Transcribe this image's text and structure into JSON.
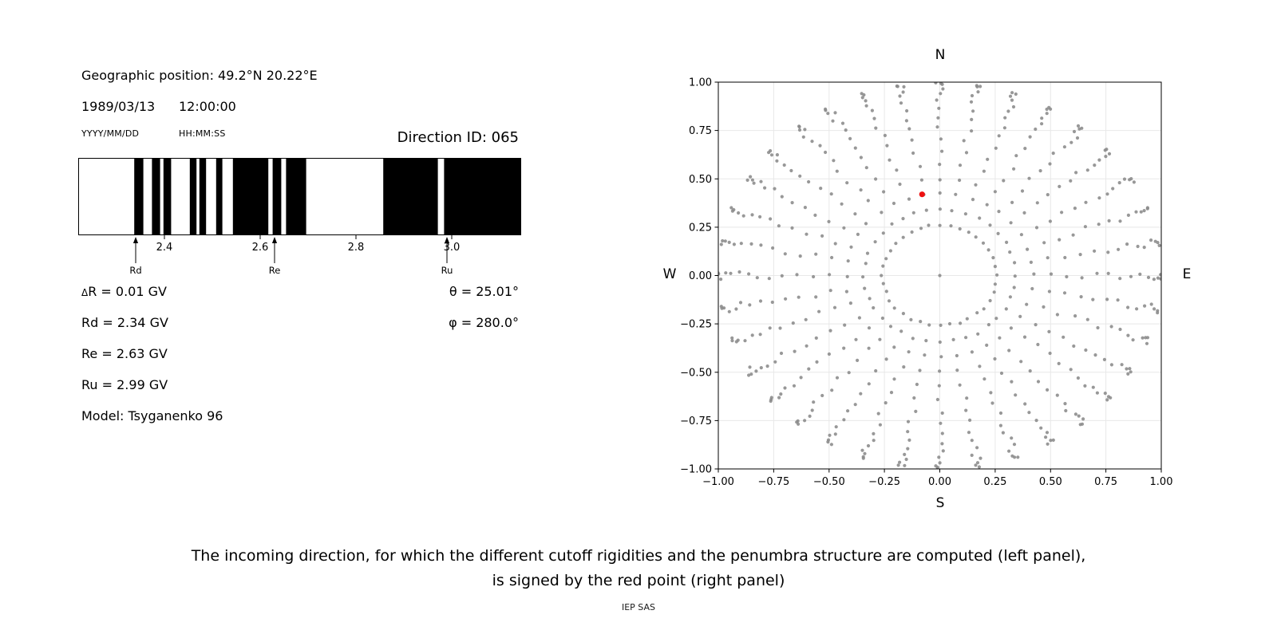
{
  "page": {
    "background": "#ffffff",
    "caption_line1": "The incoming direction, for which the different cutoff rigidities and the penumbra structure are computed (left panel),",
    "caption_line2": "is signed by the red point (right panel)",
    "credit": "IEP SAS"
  },
  "left_panel": {
    "geographic_position": "Geographic position: 49.2°N 20.22°E",
    "date": "1989/03/13",
    "time": "12:00:00",
    "date_format_label": "YYYY/MM/DD",
    "time_format_label": "HH:MM:SS",
    "direction_id": "Direction ID: 065",
    "params": {
      "delta_symbol": "Δ",
      "delta_rest": "R = 0.01 GV",
      "rd": "Rd = 2.34 GV",
      "re": "Re = 2.63 GV",
      "ru": "Ru = 2.99 GV",
      "model": "Model: Tsyganenko 96",
      "theta": "θ = 25.01°",
      "phi": "φ = 280.0°"
    }
  },
  "chart_data": [
    {
      "type": "bar",
      "name": "penumbra-structure",
      "description": "Penumbra structure between cutoff rigidities: black bands = allowed rigidities, white gaps = forbidden",
      "xlabel": "",
      "ylabel": "",
      "xlim": [
        2.22,
        3.145
      ],
      "x_ticks": [
        2.4,
        2.6,
        2.8,
        3.0
      ],
      "x_tick_labels": [
        "2.4",
        "2.6",
        "2.8",
        "3.0"
      ],
      "band_color": "#000000",
      "allowed_bands_gv": [
        [
          2.337,
          2.356
        ],
        [
          2.374,
          2.391
        ],
        [
          2.398,
          2.414
        ],
        [
          2.453,
          2.467
        ],
        [
          2.473,
          2.487
        ],
        [
          2.508,
          2.521
        ],
        [
          2.543,
          2.617
        ],
        [
          2.626,
          2.644
        ],
        [
          2.654,
          2.696
        ],
        [
          2.857,
          2.971
        ],
        [
          2.984,
          3.145
        ]
      ],
      "markers": [
        {
          "label": "Rd",
          "x": 2.34
        },
        {
          "label": "Re",
          "x": 2.63
        },
        {
          "label": "Ru",
          "x": 2.99
        }
      ]
    },
    {
      "type": "scatter",
      "name": "incoming-direction-grid",
      "xlim": [
        -1,
        1
      ],
      "ylim": [
        -1,
        1
      ],
      "x_ticks": [
        -1,
        -0.75,
        -0.5,
        -0.25,
        0,
        0.25,
        0.5,
        0.75,
        1
      ],
      "x_tick_labels": [
        "−1.00",
        "−0.75",
        "−0.50",
        "−0.25",
        "0.00",
        "0.25",
        "0.50",
        "0.75",
        "1.00"
      ],
      "y_ticks": [
        -1,
        -0.75,
        -0.5,
        -0.25,
        0,
        0.25,
        0.5,
        0.75,
        1
      ],
      "y_tick_labels": [
        "−1.00",
        "−0.75",
        "−0.50",
        "−0.25",
        "0.00",
        "0.25",
        "0.50",
        "0.75",
        "1.00"
      ],
      "compass_labels": {
        "top": "N",
        "bottom": "S",
        "left": "W",
        "right": "E"
      },
      "grid": true,
      "grid_color": "#e8e8e8",
      "dot_color": "#8a8a8a",
      "dot_radius": 2.1,
      "red_point": {
        "x": -0.08,
        "y": 0.42,
        "color": "#ee1111",
        "radius": 3.6
      },
      "direction_grid": {
        "azimuth_start_deg": 0,
        "azimuth_step_deg": 10,
        "azimuth_count": 36,
        "zenith_deg": [
          15,
          20,
          25,
          30,
          35,
          40,
          45,
          50,
          55,
          60,
          65,
          70,
          75,
          80,
          85,
          90
        ],
        "projection": "sin(zenith)",
        "center_point": true,
        "az_jitter_deg": 2.4,
        "r_jitter": 0.012,
        "seed": 11
      }
    }
  ]
}
